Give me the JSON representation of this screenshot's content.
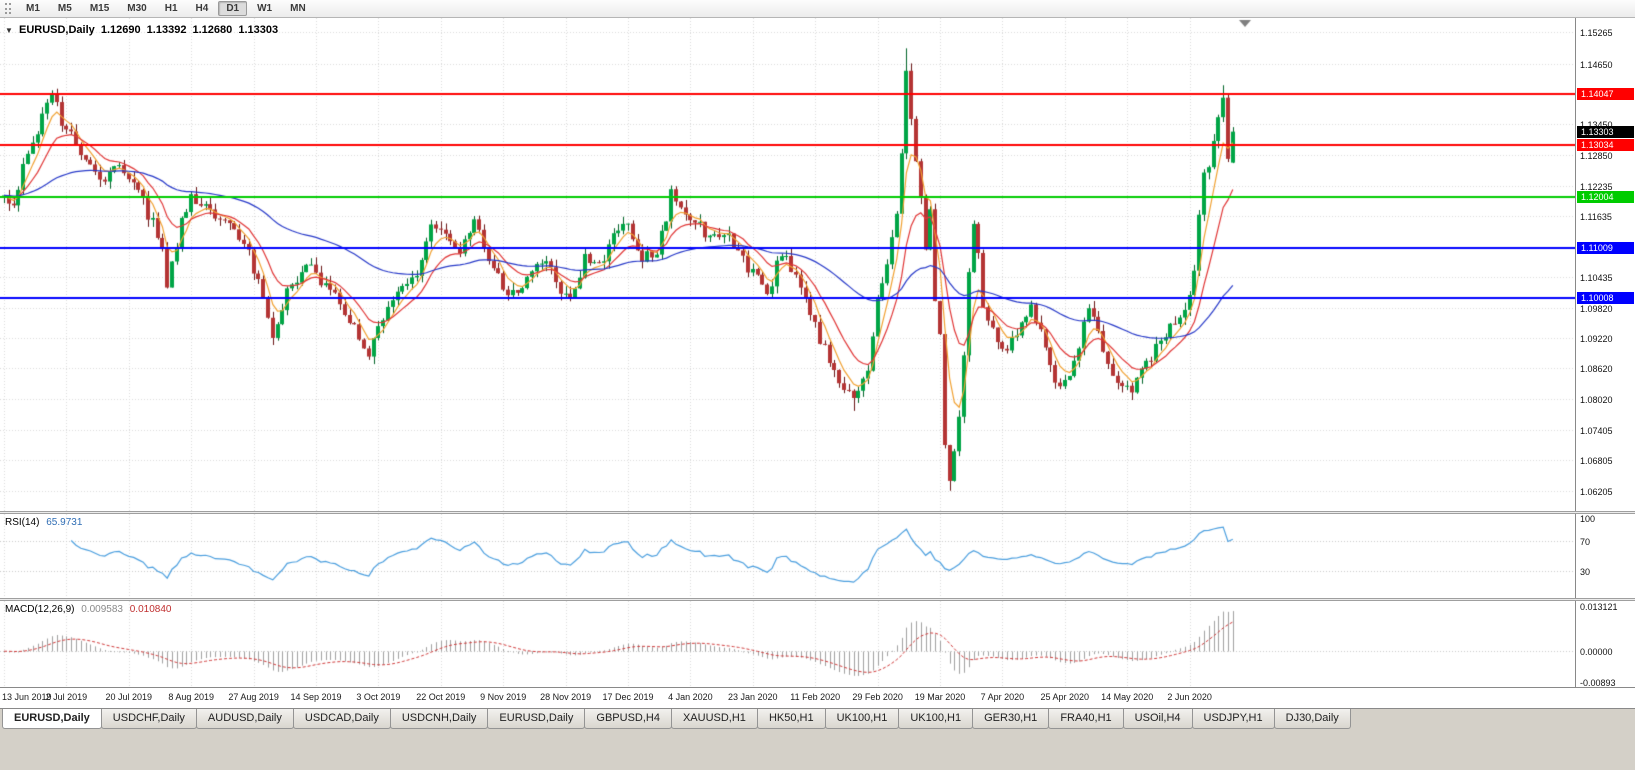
{
  "toolbar": {
    "timeframes": [
      "M1",
      "M5",
      "M15",
      "M30",
      "H1",
      "H4",
      "D1",
      "W1",
      "MN"
    ],
    "active_timeframe": "D1"
  },
  "chart_header": {
    "symbol_label": "EURUSD,Daily",
    "open": "1.12690",
    "high": "1.13392",
    "low": "1.12680",
    "close": "1.13303"
  },
  "rsi": {
    "label": "RSI(14)",
    "value": "65.9731",
    "period": 14,
    "color": "#4a9ede",
    "levels": [
      70,
      30
    ],
    "ticks": [
      {
        "label": "100",
        "value": 100
      },
      {
        "label": "70",
        "value": 70
      },
      {
        "label": "30",
        "value": 30
      }
    ]
  },
  "macd": {
    "label": "MACD(12,26,9)",
    "main_value": "0.009583",
    "signal_value": "0.010840",
    "fast": 12,
    "slow": 26,
    "signal": 9,
    "histogram_color": "#a0a0a0",
    "signal_color": "#d03a3a",
    "scale_max": 0.013121,
    "scale_min": -0.00893,
    "ticks": [
      {
        "label": "0.013121",
        "value": 0.013121
      },
      {
        "label": "0.00000",
        "value": 0
      },
      {
        "label": "-0.00893",
        "value": -0.00893
      }
    ]
  },
  "tabs": {
    "active_index": 0,
    "items": [
      "EURUSD,Daily",
      "USDCHF,Daily",
      "AUDUSD,Daily",
      "USDCAD,Daily",
      "USDCNH,Daily",
      "EURUSD,Daily",
      "GBPUSD,H4",
      "XAUUSD,H1",
      "HK50,H1",
      "UK100,H1",
      "UK100,H1",
      "GER30,H1",
      "FRA40,H1",
      "USOil,H4",
      "USDJPY,H1",
      "DJ30,Daily"
    ]
  },
  "chart_data": {
    "type": "candlestick",
    "symbol": "EURUSD",
    "timeframe": "Daily",
    "candle_count": 257,
    "visible_range": {
      "price_top": 1.1555,
      "price_bottom": 1.058
    },
    "y_ticks": [
      1.15265,
      1.1465,
      1.1345,
      1.1285,
      1.12235,
      1.11635,
      1.10435,
      1.0982,
      1.0922,
      1.0862,
      1.0802,
      1.07405,
      1.06805,
      1.06205
    ],
    "x_label_indices": [
      0,
      13,
      26,
      39,
      52,
      65,
      78,
      91,
      104,
      117,
      130,
      143,
      156,
      169,
      182,
      195,
      208,
      221,
      234,
      247
    ],
    "x_labels": [
      "13 Jun 2019",
      "2 Jul 2019",
      "20 Jul 2019",
      "8 Aug 2019",
      "27 Aug 2019",
      "14 Sep 2019",
      "3 Oct 2019",
      "22 Oct 2019",
      "9 Nov 2019",
      "28 Nov 2019",
      "17 Dec 2019",
      "4 Jan 2020",
      "23 Jan 2020",
      "11 Feb 2020",
      "29 Feb 2020",
      "19 Mar 2020",
      "7 Apr 2020",
      "25 Apr 2020",
      "14 May 2020",
      "2 Jun 2020"
    ],
    "h_lines": [
      {
        "price": 1.14047,
        "color": "#ff0000",
        "width": 2
      },
      {
        "price": 1.13034,
        "color": "#ff0000",
        "width": 2
      },
      {
        "price": 1.12004,
        "color": "#00cc00",
        "width": 2
      },
      {
        "price": 1.11009,
        "color": "#0000ff",
        "width": 2
      },
      {
        "price": 1.10008,
        "color": "#0000ff",
        "width": 2
      }
    ],
    "current_price": {
      "value": 1.13303,
      "tag_color": "#000000"
    },
    "last_candle": {
      "open": 1.1269,
      "high": 1.13392,
      "low": 1.1268,
      "close": 1.13303
    },
    "moving_averages": [
      {
        "period": 5,
        "color": "#f0a030"
      },
      {
        "period": 12,
        "color": "#e03535"
      },
      {
        "period": 55,
        "color": "#2638c8"
      }
    ],
    "colors": {
      "up": "#00a546",
      "down": "#b43434",
      "wick_up": "#006428",
      "wick_down": "#6a1616"
    },
    "price_path_anchors": [
      [
        0,
        1.12
      ],
      [
        2,
        1.1185
      ],
      [
        4,
        1.1255
      ],
      [
        6,
        1.131
      ],
      [
        8,
        1.136
      ],
      [
        10,
        1.1398
      ],
      [
        12,
        1.1355
      ],
      [
        14,
        1.132
      ],
      [
        17,
        1.128
      ],
      [
        20,
        1.123
      ],
      [
        24,
        1.1265
      ],
      [
        28,
        1.1205
      ],
      [
        31,
        1.115
      ],
      [
        33,
        1.1085
      ],
      [
        34,
        1.104
      ],
      [
        37,
        1.115
      ],
      [
        39,
        1.12
      ],
      [
        43,
        1.1175
      ],
      [
        47,
        1.115
      ],
      [
        51,
        1.1095
      ],
      [
        54,
        1.1
      ],
      [
        56,
        1.093
      ],
      [
        59,
        1.101
      ],
      [
        63,
        1.107
      ],
      [
        66,
        1.103
      ],
      [
        69,
        1.101
      ],
      [
        73,
        1.0945
      ],
      [
        76,
        1.089
      ],
      [
        78,
        1.0935
      ],
      [
        80,
        1.098
      ],
      [
        83,
        1.102
      ],
      [
        86,
        1.1045
      ],
      [
        89,
        1.115
      ],
      [
        92,
        1.113
      ],
      [
        95,
        1.109
      ],
      [
        98,
        1.115
      ],
      [
        101,
        1.1075
      ],
      [
        104,
        1.102
      ],
      [
        107,
        1.1005
      ],
      [
        110,
        1.1055
      ],
      [
        113,
        1.107
      ],
      [
        116,
        1.102
      ],
      [
        118,
        1.1
      ],
      [
        121,
        1.1075
      ],
      [
        124,
        1.106
      ],
      [
        127,
        1.113
      ],
      [
        130,
        1.115
      ],
      [
        133,
        1.108
      ],
      [
        136,
        1.109
      ],
      [
        139,
        1.12
      ],
      [
        141,
        1.117
      ],
      [
        144,
        1.116
      ],
      [
        147,
        1.112
      ],
      [
        150,
        1.1135
      ],
      [
        153,
        1.109
      ],
      [
        156,
        1.105
      ],
      [
        159,
        1.1005
      ],
      [
        162,
        1.109
      ],
      [
        165,
        1.105
      ],
      [
        168,
        1.097
      ],
      [
        171,
        1.09
      ],
      [
        174,
        1.0835
      ],
      [
        177,
        1.0795
      ],
      [
        180,
        1.086
      ],
      [
        182,
        1.1
      ],
      [
        184,
        1.106
      ],
      [
        186,
        1.117
      ],
      [
        188,
        1.144
      ],
      [
        190,
        1.129
      ],
      [
        192,
        1.111
      ],
      [
        193,
        1.118
      ],
      [
        194,
        1.0995
      ],
      [
        195,
        1.0915
      ],
      [
        196,
        1.0692
      ],
      [
        197,
        1.064
      ],
      [
        199,
        1.079
      ],
      [
        201,
        1.103
      ],
      [
        202,
        1.114
      ],
      [
        204,
        1.1
      ],
      [
        206,
        1.093
      ],
      [
        208,
        1.089
      ],
      [
        211,
        1.093
      ],
      [
        214,
        1.098
      ],
      [
        217,
        1.09
      ],
      [
        220,
        1.082
      ],
      [
        223,
        1.087
      ],
      [
        226,
        1.0985
      ],
      [
        229,
        1.09
      ],
      [
        232,
        1.0835
      ],
      [
        235,
        1.082
      ],
      [
        238,
        1.087
      ],
      [
        241,
        1.092
      ],
      [
        244,
        1.095
      ],
      [
        246,
        1.098
      ],
      [
        248,
        1.106
      ],
      [
        250,
        1.123
      ],
      [
        252,
        1.13
      ],
      [
        254,
        1.139
      ],
      [
        255,
        1.129
      ],
      [
        256,
        1.133
      ]
    ],
    "wick_overrides": [
      {
        "index": 10,
        "high": 1.1412
      },
      {
        "index": 76,
        "low": 1.0879
      },
      {
        "index": 177,
        "low": 1.0778
      },
      {
        "index": 188,
        "high": 1.1495
      },
      {
        "index": 197,
        "low": 1.062
      },
      {
        "index": 254,
        "high": 1.1422
      }
    ]
  }
}
